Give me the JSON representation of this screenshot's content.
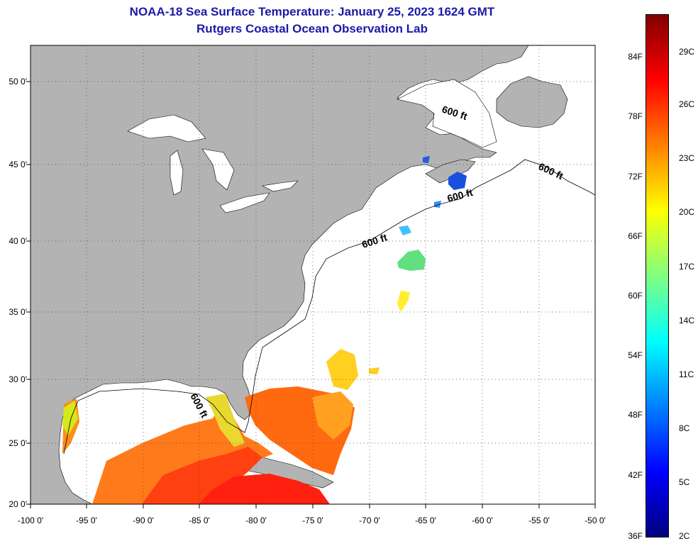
{
  "title": "NOAA-18 Sea Surface Temperature:  January 25, 2023 1624 GMT",
  "subtitle": "Rutgers Coastal Ocean Observation Lab",
  "map": {
    "lon_range": [
      -100,
      -50
    ],
    "lat_range": [
      20,
      52.5
    ],
    "lon_ticks": [
      "-100 0'",
      "-95 0'",
      "-90 0'",
      "-85 0'",
      "-80 0'",
      "-75 0'",
      "-70 0'",
      "-65 0'",
      "-60 0'",
      "-55 0'",
      "-50 0'"
    ],
    "lat_ticks": [
      "50 0'",
      "45 0'",
      "40 0'",
      "35 0'",
      "30 0'",
      "25 0'",
      "20 0'"
    ],
    "depth_labels": [
      "600 ft",
      "600 ft",
      "600 ft",
      "600 ft",
      "600 ft"
    ],
    "land_color": "#b3b3b3",
    "no_data_color": "#ffffff",
    "grid": "dotted"
  },
  "colorbar": {
    "fahrenheit": [
      "84F",
      "78F",
      "72F",
      "66F",
      "60F",
      "54F",
      "48F",
      "42F",
      "36F"
    ],
    "celsius": [
      "29C",
      "26C",
      "23C",
      "20C",
      "17C",
      "14C",
      "11C",
      "8C",
      "5C",
      "2C"
    ],
    "range_c": [
      2,
      31
    ],
    "colors": [
      "#00007f",
      "#0000ff",
      "#0080ff",
      "#00ffff",
      "#80ff80",
      "#ffff00",
      "#ff8000",
      "#ff0000",
      "#800000"
    ]
  }
}
